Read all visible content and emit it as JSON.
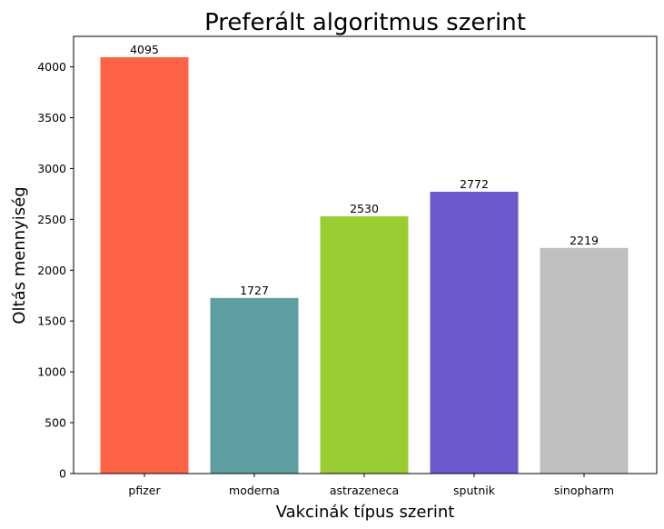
{
  "chart_data": {
    "type": "bar",
    "title": "Preferált algoritmus szerint",
    "xlabel": "Vakcinák típus szerint",
    "ylabel": "Oltás mennyiség",
    "categories": [
      "pfizer",
      "moderna",
      "astrazeneca",
      "sputnik",
      "sinopharm"
    ],
    "values": [
      4095,
      1727,
      2530,
      2772,
      2219
    ],
    "colors": [
      "#ff6347",
      "#5f9ea0",
      "#9acd32",
      "#6a5acd",
      "#c0c0c0"
    ],
    "ylim": [
      0,
      4300
    ],
    "yticks": [
      0,
      500,
      1000,
      1500,
      2000,
      2500,
      3000,
      3500,
      4000
    ],
    "grid": false,
    "data_labels": true
  }
}
